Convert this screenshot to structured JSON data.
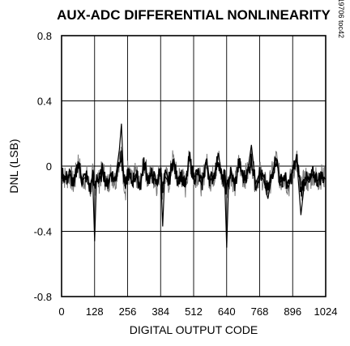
{
  "chart_data": {
    "type": "line",
    "title": "AUX-ADC DIFFERENTIAL NONLINEARITY",
    "xlabel": "DIGITAL OUTPUT CODE",
    "ylabel": "DNL (LSB)",
    "xlim": [
      0,
      1024
    ],
    "ylim": [
      -0.8,
      0.8
    ],
    "xticks": [
      0,
      128,
      256,
      384,
      512,
      640,
      768,
      896,
      1024
    ],
    "xtick_labels": [
      "0",
      "128",
      "256",
      "384",
      "512",
      "640",
      "768",
      "896",
      "1024"
    ],
    "yticks": [
      0.8,
      0.4,
      0,
      -0.4,
      -0.8
    ],
    "ytick_labels": [
      "0.8",
      "0.4",
      "0",
      "-0.4",
      "-0.8"
    ],
    "grid": true,
    "annotation": "MAX19706 toc42",
    "series_color": "#000000",
    "series": [
      {
        "x": [
          0,
          16,
          32,
          48,
          64,
          80,
          96,
          112,
          120,
          128,
          136,
          144,
          160,
          176,
          192,
          208,
          224,
          232,
          240,
          248,
          256,
          272,
          288,
          304,
          320,
          336,
          352,
          368,
          384,
          392,
          400,
          416,
          432,
          448,
          464,
          480,
          496,
          512,
          528,
          544,
          560,
          576,
          592,
          608,
          624,
          632,
          640,
          648,
          656,
          672,
          688,
          704,
          720,
          736,
          752,
          768,
          784,
          800,
          816,
          832,
          848,
          864,
          880,
          896,
          912,
          928,
          944,
          960,
          976,
          992,
          1008,
          1024
        ],
        "y": [
          -0.03,
          -0.08,
          -0.05,
          -0.12,
          0.03,
          -0.09,
          -0.06,
          -0.15,
          -0.04,
          -0.46,
          -0.05,
          -0.1,
          -0.02,
          -0.12,
          -0.04,
          -0.09,
          0.1,
          0.26,
          -0.06,
          -0.14,
          -0.03,
          -0.1,
          -0.05,
          -0.12,
          0.02,
          -0.08,
          -0.05,
          -0.11,
          -0.02,
          -0.37,
          -0.06,
          -0.1,
          0.04,
          -0.08,
          -0.05,
          -0.13,
          0.06,
          -0.07,
          -0.04,
          -0.12,
          0.03,
          -0.09,
          -0.05,
          0.08,
          -0.1,
          -0.06,
          -0.5,
          -0.08,
          -0.04,
          -0.12,
          0.02,
          -0.07,
          -0.05,
          0.13,
          -0.11,
          -0.04,
          -0.09,
          -0.2,
          -0.05,
          0.05,
          -0.1,
          -0.06,
          -0.13,
          -0.03,
          0.04,
          -0.3,
          -0.07,
          -0.1,
          -0.04,
          -0.09,
          -0.06,
          -0.08
        ]
      }
    ]
  }
}
